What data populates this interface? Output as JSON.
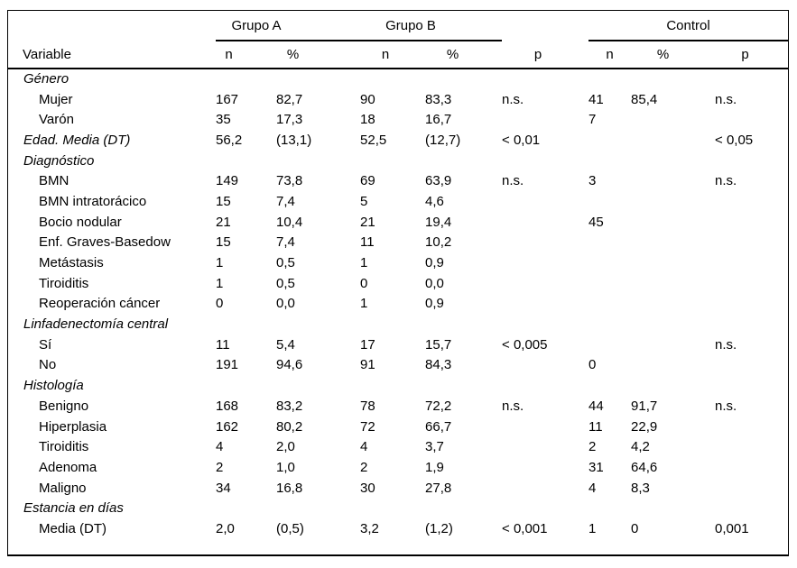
{
  "colors": {
    "background": "#ffffff",
    "text": "#000000",
    "rule": "#000000"
  },
  "table": {
    "header": {
      "variable": "Variable",
      "group_a": "Grupo A",
      "group_b": "Grupo B",
      "control": "Control",
      "n": "n",
      "pct": "%",
      "p": "p"
    },
    "columns": [
      "Variable",
      "Grupo A n",
      "Grupo A %",
      "Grupo B n",
      "Grupo B %",
      "p",
      "Control n",
      "Control %",
      "p"
    ],
    "rows": [
      {
        "label": "Género",
        "italic": true,
        "indent": 0,
        "cells": [
          "",
          "",
          "",
          "",
          "",
          "",
          "",
          ""
        ]
      },
      {
        "label": "Mujer",
        "italic": false,
        "indent": 1,
        "cells": [
          "167",
          "82,7",
          "90",
          "83,3",
          "n.s.",
          "41",
          "85,4",
          "n.s."
        ]
      },
      {
        "label": "Varón",
        "italic": false,
        "indent": 1,
        "cells": [
          "35",
          "17,3",
          "18",
          "16,7",
          "",
          "7",
          "",
          ""
        ]
      },
      {
        "label": "Edad. Media (DT)",
        "italic": true,
        "indent": 0,
        "cells": [
          "56,2",
          "(13,1)",
          "52,5",
          "(12,7)",
          "< 0,01",
          "",
          "",
          "< 0,05"
        ]
      },
      {
        "label": "Diagnóstico",
        "italic": true,
        "indent": 0,
        "cells": [
          "",
          "",
          "",
          "",
          "",
          "",
          "",
          ""
        ]
      },
      {
        "label": "BMN",
        "italic": false,
        "indent": 1,
        "cells": [
          "149",
          "73,8",
          "69",
          "63,9",
          "n.s.",
          "3",
          "",
          "n.s."
        ]
      },
      {
        "label": "BMN intratorácico",
        "italic": false,
        "indent": 1,
        "cells": [
          "15",
          "7,4",
          "5",
          "4,6",
          "",
          "",
          "",
          ""
        ]
      },
      {
        "label": "Bocio nodular",
        "italic": false,
        "indent": 1,
        "cells": [
          "21",
          "10,4",
          "21",
          "19,4",
          "",
          "45",
          "",
          ""
        ]
      },
      {
        "label": "Enf. Graves-Basedow",
        "italic": false,
        "indent": 1,
        "cells": [
          "15",
          "7,4",
          "11",
          "10,2",
          "",
          "",
          "",
          ""
        ]
      },
      {
        "label": "Metástasis",
        "italic": false,
        "indent": 1,
        "cells": [
          "1",
          "0,5",
          "1",
          "0,9",
          "",
          "",
          "",
          ""
        ]
      },
      {
        "label": "Tiroiditis",
        "italic": false,
        "indent": 1,
        "cells": [
          "1",
          "0,5",
          "0",
          "0,0",
          "",
          "",
          "",
          ""
        ]
      },
      {
        "label": "Reoperación cáncer",
        "italic": false,
        "indent": 1,
        "cells": [
          "0",
          "0,0",
          "1",
          "0,9",
          "",
          "",
          "",
          ""
        ]
      },
      {
        "label": "Linfadenectomía central",
        "italic": true,
        "indent": 0,
        "cells": [
          "",
          "",
          "",
          "",
          "",
          "",
          "",
          ""
        ]
      },
      {
        "label": "Sí",
        "italic": false,
        "indent": 1,
        "cells": [
          "11",
          "5,4",
          "17",
          "15,7",
          "< 0,005",
          "",
          "",
          "n.s."
        ]
      },
      {
        "label": "No",
        "italic": false,
        "indent": 1,
        "cells": [
          "191",
          "94,6",
          "91",
          "84,3",
          "",
          "0",
          "",
          ""
        ]
      },
      {
        "label": "Histología",
        "italic": true,
        "indent": 0,
        "cells": [
          "",
          "",
          "",
          "",
          "",
          "",
          "",
          ""
        ]
      },
      {
        "label": "Benigno",
        "italic": false,
        "indent": 1,
        "cells": [
          "168",
          "83,2",
          "78",
          "72,2",
          "n.s.",
          "44",
          "91,7",
          "n.s."
        ]
      },
      {
        "label": "Hiperplasia",
        "italic": false,
        "indent": 1,
        "cells": [
          "162",
          "80,2",
          "72",
          "66,7",
          "",
          "11",
          "22,9",
          ""
        ]
      },
      {
        "label": "Tiroiditis",
        "italic": false,
        "indent": 1,
        "cells": [
          "4",
          "2,0",
          "4",
          "3,7",
          "",
          "2",
          "4,2",
          ""
        ]
      },
      {
        "label": "Adenoma",
        "italic": false,
        "indent": 1,
        "cells": [
          "2",
          "1,0",
          "2",
          "1,9",
          "",
          "31",
          "64,6",
          ""
        ]
      },
      {
        "label": "Maligno",
        "italic": false,
        "indent": 1,
        "cells": [
          "34",
          "16,8",
          "30",
          "27,8",
          "",
          "4",
          "8,3",
          ""
        ]
      },
      {
        "label": "Estancia en días",
        "italic": true,
        "indent": 0,
        "cells": [
          "",
          "",
          "",
          "",
          "",
          "",
          "",
          ""
        ]
      },
      {
        "label": "Media (DT)",
        "italic": false,
        "indent": 1,
        "cells": [
          "2,0",
          "(0,5)",
          "3,2",
          "(1,2)",
          "< 0,001",
          "1",
          "0",
          "0,001"
        ]
      }
    ]
  }
}
